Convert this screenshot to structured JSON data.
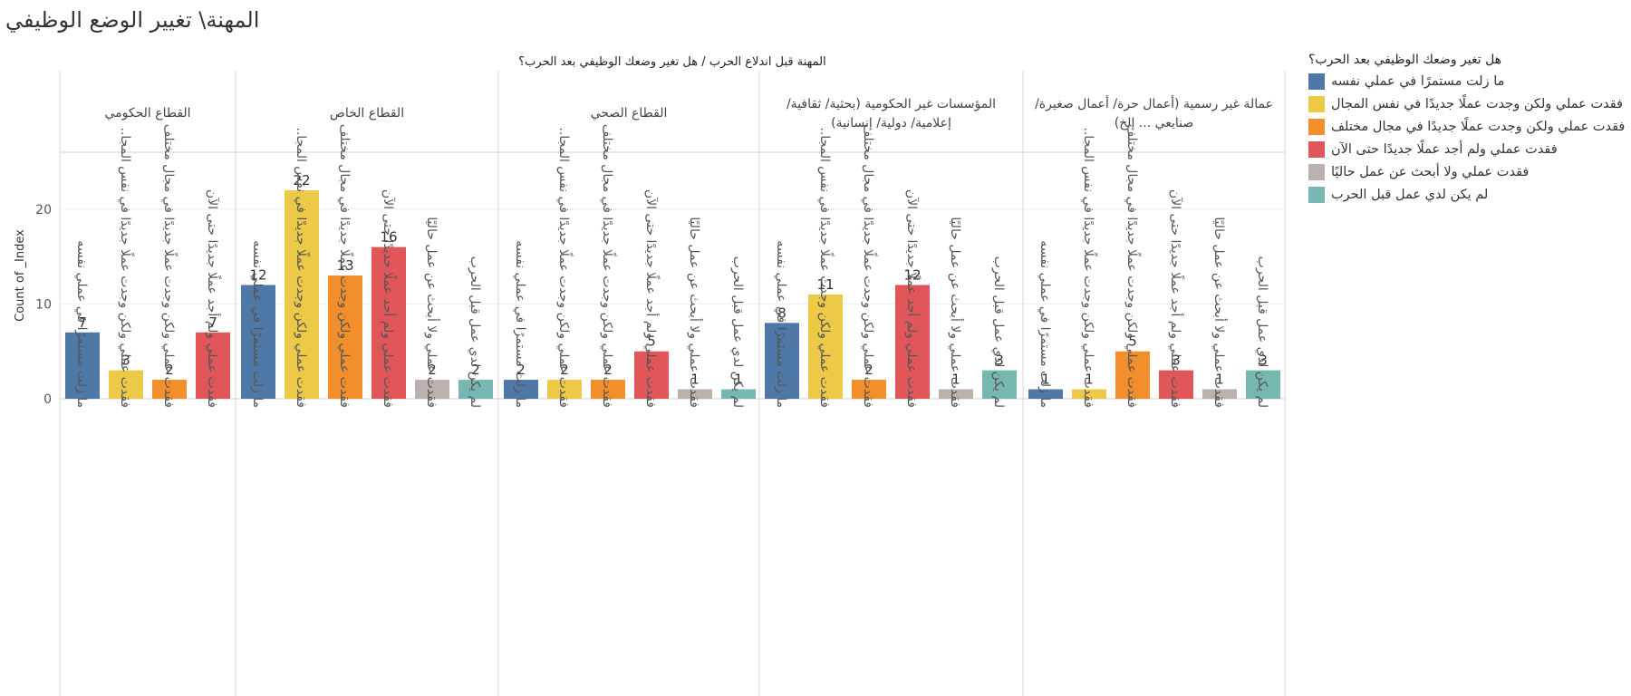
{
  "page_title": "المهنة\\ تغيير الوضع الوظيفي",
  "colors": {
    "ma_zilt": "#4e79a7",
    "same_field": "#edc948",
    "diff_field": "#f28e2b",
    "not_found": "#e15759",
    "not_seeking": "#bab0ac",
    "no_job": "#76b7b2"
  },
  "legend": {
    "title": "هل تغير وضعك الوظيفي بعد الحرب؟",
    "items": [
      {
        "label": "ما زلت مستمرًا في عملي نفسه",
        "color": "#4e79a7"
      },
      {
        "label": "فقدت عملي ولكن وجدت عملًا جديدًا في نفس المجال",
        "color": "#edc948"
      },
      {
        "label": "فقدت عملي ولكن وجدت عملًا جديدًا في مجال مختلف",
        "color": "#f28e2b"
      },
      {
        "label": "فقدت عملي ولم أجد عملًا جديدًا حتى الآن",
        "color": "#e15759"
      },
      {
        "label": "فقدت عملي ولا أبحث عن عمل حاليًا",
        "color": "#bab0ac"
      },
      {
        "label": "لم يكن لدي عمل قبل الحرب",
        "color": "#76b7b2"
      }
    ]
  },
  "chart_data": {
    "type": "bar",
    "title": "",
    "column_header": "المهنة قبل اندلاع الحرب  /  هل تغير وضعك الوظيفي بعد الحرب؟",
    "ylabel": "Count of _Index",
    "ylim": [
      0,
      26
    ],
    "yticks": [
      0,
      10,
      20
    ],
    "grid": true,
    "legend_position": "right",
    "panels": [
      {
        "name": "القطاع الحكومي",
        "bars": [
          {
            "category": "ما زلت مستمرًا في عملي نفسه",
            "value": 7,
            "color": "#4e79a7"
          },
          {
            "category": "فقدت عملي ولكن وجدت عملًا جديدًا في نفس المجا..",
            "value": 3,
            "color": "#edc948"
          },
          {
            "category": "فقدت عملي ولكن وجدت عملًا جديدًا في مجال مختلف",
            "value": 2,
            "color": "#f28e2b"
          },
          {
            "category": "فقدت عملي ولم أجد عملًا جديدًا حتى الآن",
            "value": 7,
            "color": "#e15759"
          }
        ]
      },
      {
        "name": "القطاع الخاص",
        "bars": [
          {
            "category": "ما زلت مستمرًا في عملي نفسه",
            "value": 12,
            "color": "#4e79a7"
          },
          {
            "category": "فقدت عملي ولكن وجدت عملًا جديدًا في نفس المجا..",
            "value": 22,
            "color": "#edc948"
          },
          {
            "category": "فقدت عملي ولكن وجدت عملًا جديدًا في مجال مختلف",
            "value": 13,
            "color": "#f28e2b"
          },
          {
            "category": "فقدت عملي ولم أجد عملًا جديدًا حتى الآن",
            "value": 16,
            "color": "#e15759"
          },
          {
            "category": "فقدت عملي ولا أبحث عن عمل حاليًا",
            "value": 2,
            "color": "#bab0ac"
          },
          {
            "category": "لم يكن لدي عمل قبل الحرب",
            "value": 2,
            "color": "#76b7b2"
          }
        ]
      },
      {
        "name": "القطاع الصحي",
        "bars": [
          {
            "category": "ما زلت مستمرًا في عملي نفسه",
            "value": 2,
            "color": "#4e79a7"
          },
          {
            "category": "فقدت عملي ولكن وجدت عملًا جديدًا في نفس المجا..",
            "value": 2,
            "color": "#edc948"
          },
          {
            "category": "فقدت عملي ولكن وجدت عملًا جديدًا في مجال مختلف",
            "value": 2,
            "color": "#f28e2b"
          },
          {
            "category": "فقدت عملي ولم أجد عملًا جديدًا حتى الآن",
            "value": 5,
            "color": "#e15759"
          },
          {
            "category": "فقدت عملي ولا أبحث عن عمل حاليًا",
            "value": 1,
            "color": "#bab0ac"
          },
          {
            "category": "لم يكن لدي عمل قبل الحرب",
            "value": 1,
            "color": "#76b7b2"
          }
        ]
      },
      {
        "name": "المؤسسات غير الحكومية (بحثية/ ثقافية/ إعلامية/ دولية/ إنسانية)",
        "name_lines": [
          "المؤسسات غير الحكومية (بحثية/ ثقافية/",
          "إعلامية/ دولية/ إنسانية)"
        ],
        "bars": [
          {
            "category": "ما زلت مستمرًا في عملي نفسه",
            "value": 8,
            "color": "#4e79a7"
          },
          {
            "category": "فقدت عملي ولكن وجدت عملًا جديدًا في نفس المجا..",
            "value": 11,
            "color": "#edc948"
          },
          {
            "category": "فقدت عملي ولكن وجدت عملًا جديدًا في مجال مختلف",
            "value": 2,
            "color": "#f28e2b"
          },
          {
            "category": "فقدت عملي ولم أجد عملًا جديدًا حتى الآن",
            "value": 12,
            "color": "#e15759"
          },
          {
            "category": "فقدت عملي ولا أبحث عن عمل حاليًا",
            "value": 1,
            "color": "#bab0ac"
          },
          {
            "category": "لم يكن لدي عمل قبل الحرب",
            "value": 3,
            "color": "#76b7b2"
          }
        ]
      },
      {
        "name": "عمالة غير رسمية (أعمال حرة/ أعمال صغيرة/ صنايعي ... إلخ)",
        "name_lines": [
          "عمالة غير رسمية (أعمال حرة/ أعمال صغيرة/",
          "صنايعي ... إلخ)"
        ],
        "bars": [
          {
            "category": "ما زلت مستمرًا في عملي نفسه",
            "value": 1,
            "color": "#4e79a7"
          },
          {
            "category": "فقدت عملي ولكن وجدت عملًا جديدًا في نفس المجا..",
            "value": 1,
            "color": "#edc948"
          },
          {
            "category": "فقدت عملي ولكن وجدت عملًا جديدًا في مجال مختلف",
            "value": 5,
            "color": "#f28e2b"
          },
          {
            "category": "فقدت عملي ولم أجد عملًا جديدًا حتى الآن",
            "value": 3,
            "color": "#e15759"
          },
          {
            "category": "فقدت عملي ولا أبحث عن عمل حاليًا",
            "value": 1,
            "color": "#bab0ac"
          },
          {
            "category": "لم يكن لدي عمل قبل الحرب",
            "value": 3,
            "color": "#76b7b2"
          }
        ]
      }
    ]
  }
}
